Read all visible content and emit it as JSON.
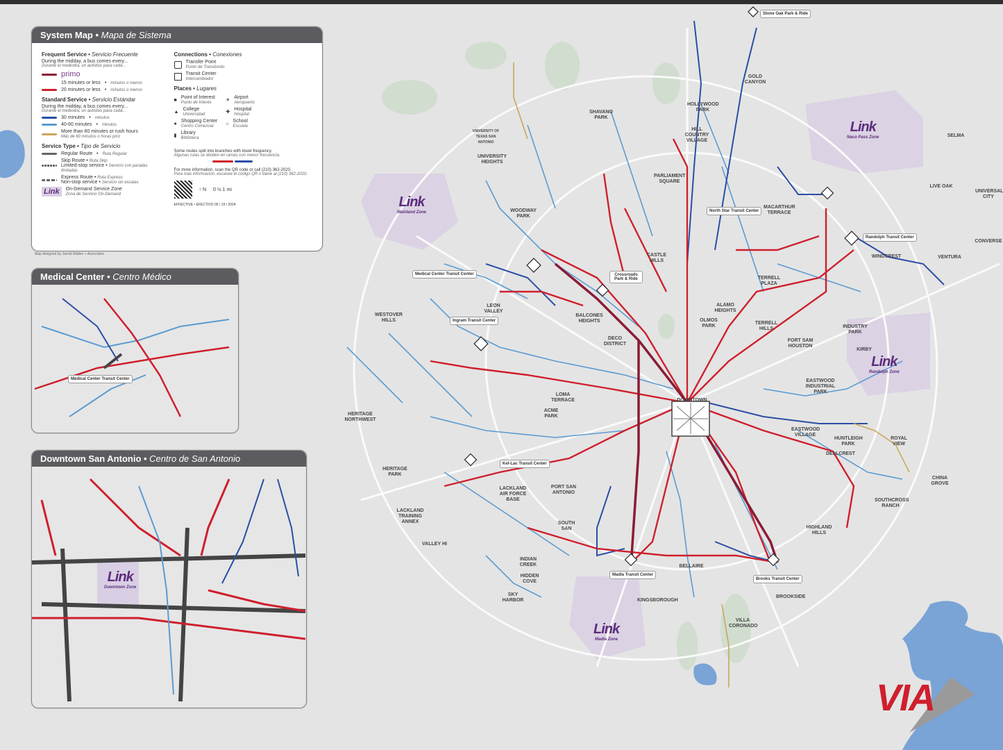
{
  "legend": {
    "title": "System Map",
    "title_es": "Mapa de Sistema",
    "frequent": {
      "heading": "Frequent Service",
      "heading_es": "Servicio Frecuente",
      "sub": "During the midday, a bus comes every...",
      "sub_es": "Durante el mediodía, un autobús pasa cada...",
      "primo": "primo",
      "r15": "15 minutes or less",
      "r15_es": "minutos o menos",
      "r20": "20 minutes or less",
      "r20_es": "minutos o menos"
    },
    "standard": {
      "heading": "Standard Service",
      "heading_es": "Servicio Estándar",
      "sub": "During the midday, a bus comes every...",
      "sub_es": "Durante el mediodía, un autobús pasa cada...",
      "r30": "30 minutes",
      "r30_es": "minutos",
      "r4060": "40-60 minutes",
      "r4060_es": "minutos",
      "r60": "More than 60 minutes or rush hours",
      "r60_es": "Más de 60 minutos o horas pico"
    },
    "type": {
      "heading": "Service Type",
      "heading_es": "Tipo de Servicio",
      "regular": "Regular Route",
      "regular_es": "Ruta Regular",
      "skip": "Skip Route",
      "skip_es": "Ruta Skip",
      "skip_sub": "Limited-stop service",
      "skip_sub_es": "Servicio con paradas limitadas",
      "express": "Express Route",
      "express_es": "Ruta Expreso",
      "express_sub": "Non-stop service",
      "express_sub_es": "Servicio sin escalas",
      "ondemand": "On-Demand Service Zone",
      "ondemand_es": "Zona de Servicio On-Demand"
    },
    "connections": {
      "heading": "Connections",
      "heading_es": "Conexiones",
      "transfer": "Transfer Point",
      "transfer_es": "Punto de Transbordo",
      "tc": "Transit Center",
      "tc_es": "Intercambiador"
    },
    "places": {
      "heading": "Places",
      "heading_es": "Lugares",
      "poi": "Point of Interest",
      "poi_es": "Punto de Interés",
      "college": "College",
      "college_es": "Universidad",
      "shopping": "Shopping Center",
      "shopping_es": "Centro Comercial",
      "library": "Library",
      "library_es": "Biblioteca",
      "airport": "Airport",
      "airport_es": "Aeropuerto",
      "hospital": "Hospital",
      "hospital_es": "Hospital",
      "school": "School",
      "school_es": "Escuela"
    },
    "split_note": "Some routes split into branches with lower frequency.",
    "split_note_es": "Algunas rutas se dividen en ramas con menor frecuencia.",
    "info": "For more information, scan the QR code or call (210) 362-2020.",
    "info_es": "Para más información, escanee el código QR o llame al (210) 362-2020.",
    "effective": "EFFECTIVE • EFECTIVO 05 / 19 / 2024",
    "scale": "0  ½  1 mi",
    "credit": "Map designed by Jarrett Walker + Associates"
  },
  "insets": {
    "medical": {
      "title": "Medical Center",
      "title_es": "Centro Médico",
      "tc": "Medical Center Transit Center"
    },
    "downtown": {
      "title": "Downtown San Antonio",
      "title_es": "Centro de San Antonio",
      "zone": "Downtown Zone"
    }
  },
  "zones": [
    {
      "name": "Mainland Zone"
    },
    {
      "name": "Naco Pass Zone"
    },
    {
      "name": "Randolph Zone"
    },
    {
      "name": "Madla Zone"
    }
  ],
  "link_text": "Link",
  "via_text": "VIA",
  "transit_centers": {
    "north_star": "North Star Transit Center",
    "randolph": "Randolph Transit Center",
    "medical": "Medical Center Transit Center",
    "ingram": "Ingram Transit Center",
    "crossroads": "Crossroads Park & Ride",
    "kellac": "Kel-Lac Transit Center",
    "madla": "Madla Transit Center",
    "brooks": "Brooks Transit Center",
    "stone_oak": "Stone Oak Park & Ride"
  },
  "places": {
    "downtown": "DOWNTOWN",
    "gold_canyon": "GOLD CANYON",
    "hollywood": "HOLLYWOOD PARK",
    "hill_country": "HILL COUNTRY VILLAGE",
    "shavano": "SHAVANO PARK",
    "parliament": "PARLIAMENT SQUARE",
    "macarthur": "MACARTHUR TERRACE",
    "castle": "CASTLE HILLS",
    "terrell_plaza": "TERRELL PLAZA",
    "alamo": "ALAMO HEIGHTS",
    "olmos": "OLMOS PARK",
    "terrell_hills": "TERRELL HILLS",
    "fort_sam": "FORT SAM HOUSTON",
    "balcones": "BALCONES HEIGHTS",
    "deco": "DECO DISTRICT",
    "leon_valley": "LEON VALLEY",
    "westover": "WESTOVER HILLS",
    "utsa": "UNIVERSITY OF TEXAS SAN ANTONIO",
    "univ_heights": "UNIVERSITY HEIGHTS",
    "woodway": "WOODWAY PARK",
    "heritage_nw": "HERITAGE NORTHWEST",
    "loma": "LOMA TERRACE",
    "acme": "ACME PARK",
    "heritage_park": "HERITAGE PARK",
    "lackland_base": "LACKLAND AIR FORCE BASE",
    "lackland_annex": "LACKLAND TRAINING ANNEX",
    "port_sa": "PORT SAN ANTONIO",
    "south_sa": "SOUTH SAN",
    "valley_hi": "VALLEY HI",
    "indian_creek": "INDIAN CREEK",
    "hidden_cove": "HIDDEN COVE",
    "sky_harbor": "SKY HARBOR",
    "kingsborough": "KINGSBOROUGH",
    "bellaire": "BELLAIRE",
    "villa_coronado": "VILLA CORONADO",
    "brookside": "BROOKSIDE",
    "highland": "HIGHLAND HILLS",
    "southcross": "SOUTHCROSS RANCH",
    "dellcrest": "DELLCREST",
    "huntleigh": "HUNTLEIGH PARK",
    "eastwood_v": "EASTWOOD VILLAGE",
    "eastwood_i": "EASTWOOD INDUSTRIAL PARK",
    "industry": "INDUSTRY PARK",
    "kirby": "KIRBY",
    "windcrest": "WINDCREST",
    "ventura": "VENTURA",
    "converse": "CONVERSE",
    "live_oak": "LIVE OAK",
    "selma": "SELMA",
    "universal": "UNIVERSAL CITY",
    "royal_view": "ROYAL VIEW",
    "china_grove": "CHINA GROVE"
  },
  "colors": {
    "frequent_red": "#cf1f2c",
    "primo_maroon": "#8a1c36",
    "route_blue_dark": "#2a4ea5",
    "route_blue_light": "#5b9bd1",
    "rush_tan": "#c9a75a",
    "zone_purple": "#d9cfe4",
    "panel_header": "#5b5b60"
  }
}
